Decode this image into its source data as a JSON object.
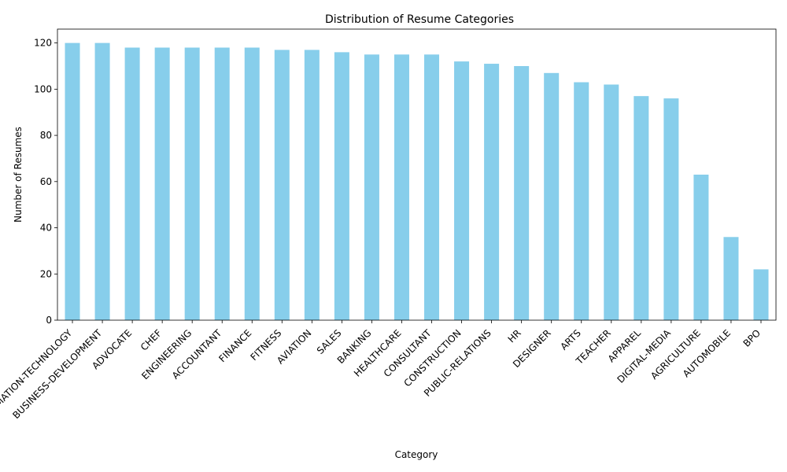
{
  "chart_data": {
    "type": "bar",
    "title": "Distribution of Resume Categories",
    "xlabel": "Category",
    "ylabel": "Number of Resumes",
    "categories": [
      "INFORMATION-TECHNOLOGY",
      "BUSINESS-DEVELOPMENT",
      "ADVOCATE",
      "CHEF",
      "ENGINEERING",
      "ACCOUNTANT",
      "FINANCE",
      "FITNESS",
      "AVIATION",
      "SALES",
      "BANKING",
      "HEALTHCARE",
      "CONSULTANT",
      "CONSTRUCTION",
      "PUBLIC-RELATIONS",
      "HR",
      "DESIGNER",
      "ARTS",
      "TEACHER",
      "APPAREL",
      "DIGITAL-MEDIA",
      "AGRICULTURE",
      "AUTOMOBILE",
      "BPO"
    ],
    "values": [
      120,
      120,
      118,
      118,
      118,
      118,
      118,
      117,
      117,
      116,
      115,
      115,
      115,
      112,
      111,
      110,
      107,
      103,
      102,
      97,
      96,
      63,
      36,
      22
    ],
    "yticks": [
      0,
      20,
      40,
      60,
      80,
      100,
      120
    ],
    "ylim": [
      0,
      126
    ],
    "bar_color": "#87ceeb",
    "grid": false,
    "legend": "none"
  }
}
